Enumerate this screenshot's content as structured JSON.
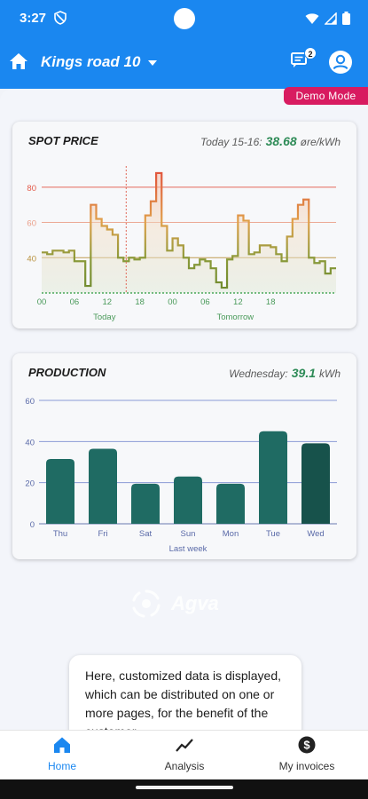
{
  "status_bar": {
    "time": "3:27"
  },
  "header": {
    "location": "Kings road 10",
    "chat_badge": "2"
  },
  "demo_label": "Demo Mode",
  "spot_card": {
    "title": "SPOT PRICE",
    "info_label": "Today 15-16:",
    "info_value": "38.68",
    "info_unit": "øre/kWh"
  },
  "production_card": {
    "title": "PRODUCTION",
    "info_label": "Wednesday:",
    "info_value": "39.1",
    "info_unit": "kWh"
  },
  "chart_data": [
    {
      "type": "line",
      "title": "SPOT PRICE",
      "x_tick_labels": [
        "00",
        "06",
        "12",
        "18",
        "00",
        "06",
        "12",
        "18"
      ],
      "x_group_labels": [
        "Today",
        "Tomorrow"
      ],
      "y_tick_labels": [
        "40",
        "60",
        "80"
      ],
      "ylim": [
        20,
        92
      ],
      "grid": true,
      "step": true,
      "current_hour_index": 15,
      "series": [
        {
          "values": [
            43,
            42,
            44,
            44,
            43,
            44,
            38,
            38,
            24,
            70,
            62,
            58,
            56,
            53,
            40,
            38,
            40,
            39,
            40,
            64,
            72,
            88,
            58,
            44,
            51,
            47,
            40,
            34,
            36,
            39,
            38,
            34,
            26,
            23,
            39,
            41,
            64,
            61,
            42,
            43,
            47,
            47,
            46,
            42,
            38,
            52,
            62,
            70,
            73,
            40,
            37,
            38,
            31,
            34
          ]
        }
      ]
    },
    {
      "type": "bar",
      "title": "PRODUCTION",
      "xlabel": "Last week",
      "categories": [
        "Thu",
        "Fri",
        "Sat",
        "Sun",
        "Mon",
        "Tue",
        "Wed"
      ],
      "values": [
        31.5,
        36.5,
        19.5,
        23,
        19.5,
        45,
        39.1
      ],
      "y_tick_labels": [
        "0",
        "20",
        "40",
        "60"
      ],
      "ylim": [
        0,
        60
      ],
      "grid": true,
      "colors": [
        "#1f6b63",
        "#1f6b63",
        "#1f6b63",
        "#1f6b63",
        "#1f6b63",
        "#1f6b63",
        "#17524b"
      ]
    }
  ],
  "logo_text": "Agva",
  "info_text": "Here, customized data is displayed, which can be distributed on one or more pages, for the benefit of the customer.",
  "bottom_nav": {
    "home": "Home",
    "analysis": "Analysis",
    "invoices": "My invoices"
  }
}
